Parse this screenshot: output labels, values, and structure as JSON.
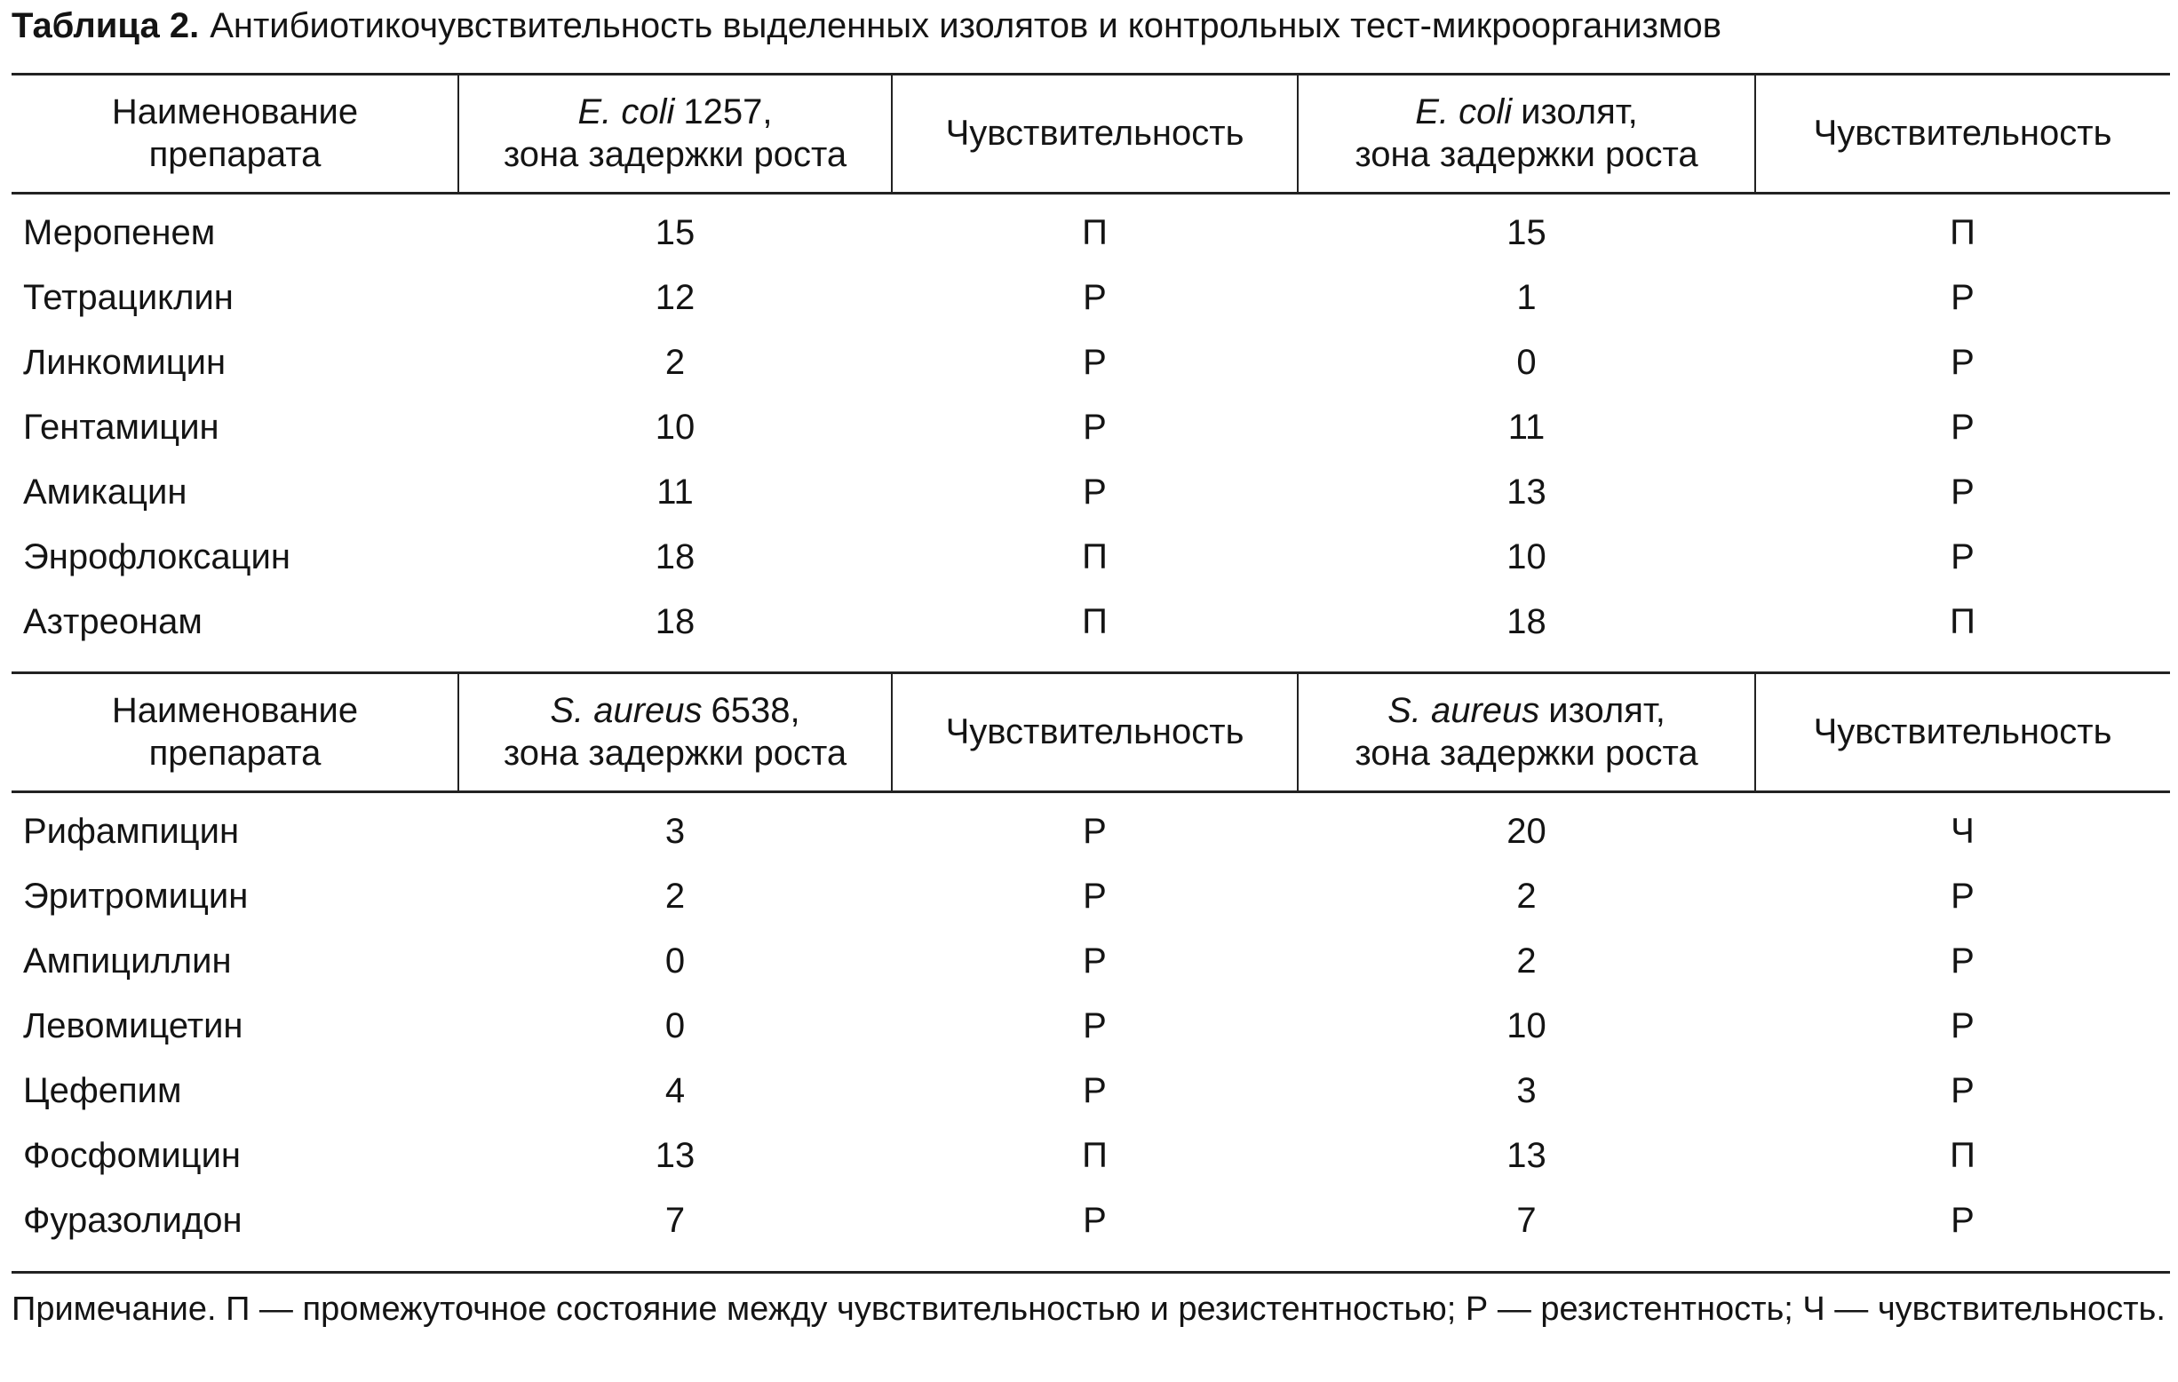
{
  "caption": {
    "label": "Таблица 2.",
    "text": "Антибиотикочувствительность выделенных изолятов и контрольных тест-микроорганизмов"
  },
  "tables": [
    {
      "header": [
        {
          "lines": [
            "Наименование",
            "препарата"
          ]
        },
        {
          "italic": "E. coli",
          "text": "1257,",
          "line2": "зона задержки роста"
        },
        {
          "lines": [
            "Чувствительность"
          ]
        },
        {
          "italic": "E. coli",
          "text": "изолят,",
          "line2": "зона задержки роста"
        },
        {
          "lines": [
            "Чувствительность"
          ]
        }
      ],
      "rows": [
        [
          "Меропенем",
          15,
          "П",
          15,
          "П"
        ],
        [
          "Тетрациклин",
          12,
          "Р",
          1,
          "Р"
        ],
        [
          "Линкомицин",
          2,
          "Р",
          0,
          "Р"
        ],
        [
          "Гентамицин",
          10,
          "Р",
          11,
          "Р"
        ],
        [
          "Амикацин",
          11,
          "Р",
          13,
          "Р"
        ],
        [
          "Энрофлоксацин",
          18,
          "П",
          10,
          "Р"
        ],
        [
          "Азтреонам",
          18,
          "П",
          18,
          "П"
        ]
      ]
    },
    {
      "header": [
        {
          "lines": [
            "Наименование",
            "препарата"
          ]
        },
        {
          "italic": "S. aureus",
          "text": "6538,",
          "line2": "зона задержки роста"
        },
        {
          "lines": [
            "Чувствительность"
          ]
        },
        {
          "italic": "S. aureus",
          "text": "изолят,",
          "line2": "зона задержки роста"
        },
        {
          "lines": [
            "Чувствительность"
          ]
        }
      ],
      "rows": [
        [
          "Рифампицин",
          3,
          "Р",
          20,
          "Ч"
        ],
        [
          "Эритромицин",
          2,
          "Р",
          2,
          "Р"
        ],
        [
          "Ампициллин",
          0,
          "Р",
          2,
          "Р"
        ],
        [
          "Левомицетин",
          0,
          "Р",
          10,
          "Р"
        ],
        [
          "Цефепим",
          4,
          "Р",
          3,
          "Р"
        ],
        [
          "Фосфомицин",
          13,
          "П",
          13,
          "П"
        ],
        [
          "Фуразолидон",
          7,
          "Р",
          7,
          "Р"
        ]
      ]
    }
  ],
  "note": "Примечание. П — промежуточное состояние между чувствительностью и резистентностью; Р — резистентность; Ч — чувствительность."
}
